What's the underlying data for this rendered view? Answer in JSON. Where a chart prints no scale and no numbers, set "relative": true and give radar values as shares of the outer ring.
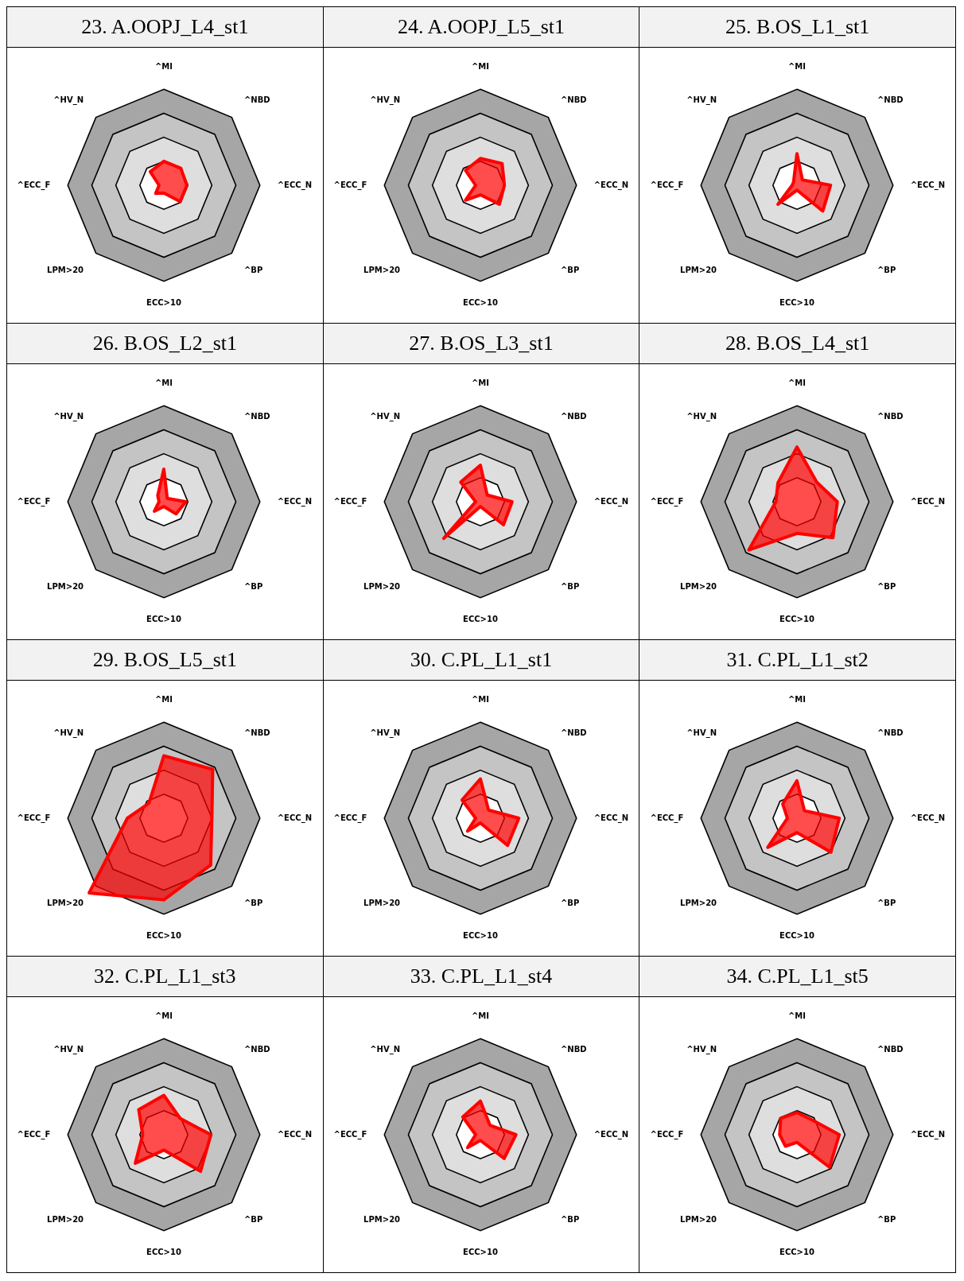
{
  "chart_data": [
    {
      "type": "radar",
      "title": "23. A.OOPJ_L4_st1",
      "categories": [
        "^MI",
        "^NBD",
        "^ECC_N",
        "^BP",
        "ECC>10",
        "LPM>20",
        "^ECC_F",
        "^HV_N"
      ],
      "relative": true,
      "series": [
        {
          "color": "#ff0000",
          "values": [
            0.25,
            0.25,
            0.24,
            0.24,
            0.08,
            0.12,
            0.05,
            0.2
          ]
        }
      ]
    },
    {
      "type": "radar",
      "title": "24. A.OOPJ_L5_st1",
      "categories": [
        "^MI",
        "^NBD",
        "^ECC_N",
        "^BP",
        "ECC>10",
        "LPM>20",
        "^ECC_F",
        "^HV_N"
      ],
      "relative": true,
      "series": [
        {
          "color": "#ff0000",
          "values": [
            0.28,
            0.32,
            0.25,
            0.28,
            0.1,
            0.22,
            0.05,
            0.22
          ]
        }
      ]
    },
    {
      "type": "radar",
      "title": "25. B.OS_L1_st1",
      "categories": [
        "^MI",
        "^NBD",
        "^ECC_N",
        "^BP",
        "ECC>10",
        "LPM>20",
        "^ECC_F",
        "^HV_N"
      ],
      "relative": true,
      "series": [
        {
          "color": "#ff0000",
          "values": [
            0.33,
            0.08,
            0.35,
            0.38,
            0.05,
            0.28,
            0.05,
            0.05
          ]
        }
      ]
    },
    {
      "type": "radar",
      "title": "26. B.OS_L2_st1",
      "categories": [
        "^MI",
        "^NBD",
        "^ECC_N",
        "^BP",
        "ECC>10",
        "LPM>20",
        "^ECC_F",
        "^HV_N"
      ],
      "relative": true,
      "series": [
        {
          "color": "#ff0000",
          "values": [
            0.34,
            0.05,
            0.23,
            0.18,
            0.05,
            0.14,
            0.05,
            0.09
          ]
        }
      ]
    },
    {
      "type": "radar",
      "title": "27. B.OS_L3_st1",
      "categories": [
        "^MI",
        "^NBD",
        "^ECC_N",
        "^BP",
        "ECC>10",
        "LPM>20",
        "^ECC_F",
        "^HV_N"
      ],
      "relative": true,
      "series": [
        {
          "color": "#ff0000",
          "values": [
            0.38,
            0.1,
            0.33,
            0.34,
            0.05,
            0.54,
            0.05,
            0.29
          ]
        }
      ]
    },
    {
      "type": "radar",
      "title": "28. B.OS_L4_st1",
      "categories": [
        "^MI",
        "^NBD",
        "^ECC_N",
        "^BP",
        "ECC>10",
        "LPM>20",
        "^ECC_F",
        "^HV_N"
      ],
      "relative": true,
      "series": [
        {
          "color": "#ff0000",
          "values": [
            0.57,
            0.29,
            0.42,
            0.53,
            0.33,
            0.71,
            0.22,
            0.28
          ]
        }
      ]
    },
    {
      "type": "radar",
      "title": "29. B.OS_L5_st1",
      "categories": [
        "^MI",
        "^NBD",
        "^ECC_N",
        "^BP",
        "ECC>10",
        "LPM>20",
        "^ECC_F",
        "^HV_N"
      ],
      "relative": true,
      "series": [
        {
          "color": "#ff0000",
          "values": [
            0.65,
            0.72,
            0.5,
            0.69,
            0.85,
            1.1,
            0.38,
            0.22
          ]
        }
      ]
    },
    {
      "type": "radar",
      "title": "30. C.PL_L1_st1",
      "categories": [
        "^MI",
        "^NBD",
        "^ECC_N",
        "^BP",
        "ECC>10",
        "LPM>20",
        "^ECC_F",
        "^HV_N"
      ],
      "relative": true,
      "series": [
        {
          "color": "#ff0000",
          "values": [
            0.41,
            0.12,
            0.4,
            0.4,
            0.05,
            0.19,
            0.05,
            0.27
          ]
        }
      ]
    },
    {
      "type": "radar",
      "title": "31. C.PL_L1_st2",
      "categories": [
        "^MI",
        "^NBD",
        "^ECC_N",
        "^BP",
        "ECC>10",
        "LPM>20",
        "^ECC_F",
        "^HV_N"
      ],
      "relative": true,
      "series": [
        {
          "color": "#ff0000",
          "values": [
            0.39,
            0.11,
            0.44,
            0.5,
            0.15,
            0.43,
            0.1,
            0.21
          ]
        }
      ]
    },
    {
      "type": "radar",
      "title": "32. C.PL_L1_st3",
      "categories": [
        "^MI",
        "^NBD",
        "^ECC_N",
        "^BP",
        "ECC>10",
        "LPM>20",
        "^ECC_F",
        "^HV_N"
      ],
      "relative": true,
      "series": [
        {
          "color": "#ff0000",
          "values": [
            0.41,
            0.24,
            0.49,
            0.54,
            0.16,
            0.42,
            0.22,
            0.37
          ]
        }
      ]
    },
    {
      "type": "radar",
      "title": "33. C.PL_L1_st4",
      "categories": [
        "^MI",
        "^NBD",
        "^ECC_N",
        "^BP",
        "ECC>10",
        "LPM>20",
        "^ECC_F",
        "^HV_N"
      ],
      "relative": true,
      "series": [
        {
          "color": "#ff0000",
          "values": [
            0.35,
            0.14,
            0.37,
            0.35,
            0.06,
            0.19,
            0.05,
            0.26
          ]
        }
      ]
    },
    {
      "type": "radar",
      "title": "34. C.PL_L1_st5",
      "categories": [
        "^MI",
        "^NBD",
        "^ECC_N",
        "^BP",
        "ECC>10",
        "LPM>20",
        "^ECC_F",
        "^HV_N"
      ],
      "relative": true,
      "series": [
        {
          "color": "#ff0000",
          "values": [
            0.23,
            0.22,
            0.44,
            0.48,
            0.08,
            0.17,
            0.18,
            0.24
          ]
        }
      ]
    }
  ]
}
